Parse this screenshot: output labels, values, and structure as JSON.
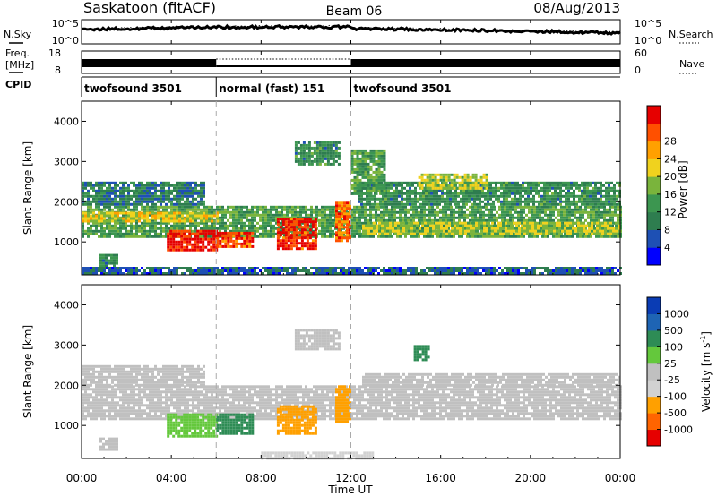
{
  "header": {
    "station": "Saskatoon (fitACF)",
    "beam": "Beam 06",
    "date": "08/Aug/2013"
  },
  "noise_panel": {
    "left_label": "N.Sky",
    "right_label": "N.Search",
    "left_ticks": [
      "10^5",
      "10^0"
    ],
    "right_ticks": [
      "10^5",
      "10^0"
    ]
  },
  "freq_panel": {
    "label_line1": "Freq.",
    "label_line2": "[MHz]",
    "left_ticks": [
      "18",
      "8"
    ],
    "right_ticks": [
      "60",
      "0"
    ],
    "right_label": "Nave"
  },
  "cpid_panel": {
    "label": "CPID",
    "segments": [
      {
        "name": "twofsound 3501",
        "start": 0,
        "end": 6
      },
      {
        "name": "normal (fast) 151",
        "start": 6,
        "end": 12
      },
      {
        "name": "twofsound 3501",
        "start": 12,
        "end": 24
      }
    ]
  },
  "axes": {
    "ylabel": "Slant Range [km]",
    "xlabel": "Time UT",
    "y_ticks": [
      "1000",
      "2000",
      "3000",
      "4000"
    ],
    "x_ticks": [
      "00:00",
      "04:00",
      "08:00",
      "12:00",
      "16:00",
      "20:00",
      "00:00"
    ]
  },
  "colors": {
    "power_scale": [
      "#0000ff",
      "#1e50b4",
      "#2e7d4f",
      "#3c9650",
      "#7ab43c",
      "#f0d21e",
      "#ffa000",
      "#ff5000",
      "#e60000"
    ],
    "velocity_scale": [
      "#0a3cb4",
      "#1e64b4",
      "#2e8c55",
      "#64c83c",
      "#c0c0c0",
      "#d2d2d2",
      "#ffa000",
      "#ff6400",
      "#e60000"
    ]
  },
  "chart_data": {
    "type": "heatmap",
    "x_range": [
      0,
      24
    ],
    "x_unit": "hours UT",
    "y_range": [
      180,
      4500
    ],
    "y_unit": "km",
    "mode_change_lines_hours": [
      6,
      12
    ],
    "panels": [
      {
        "name": "power",
        "colorbar_label": "Power [dB]",
        "colorbar_ticks": [
          "4",
          "8",
          "12",
          "16",
          "20",
          "24",
          "28"
        ],
        "colorbar_range": [
          0,
          30
        ],
        "regions": [
          {
            "t0": 0.0,
            "t1": 24.0,
            "r0": 1150,
            "r1": 1900,
            "value": 12
          },
          {
            "t0": 0.0,
            "t1": 6.0,
            "r0": 1500,
            "r1": 1750,
            "value": 18
          },
          {
            "t0": 0.0,
            "t1": 5.5,
            "r0": 1900,
            "r1": 2500,
            "value": 8
          },
          {
            "t0": 12.5,
            "t1": 24.0,
            "r0": 1200,
            "r1": 1500,
            "value": 16
          },
          {
            "t0": 12.3,
            "t1": 24.0,
            "r0": 1900,
            "r1": 2500,
            "value": 10
          },
          {
            "t0": 3.8,
            "t1": 6.0,
            "r0": 800,
            "r1": 1300,
            "value": 28
          },
          {
            "t0": 6.0,
            "t1": 7.6,
            "r0": 850,
            "r1": 1250,
            "value": 26
          },
          {
            "t0": 8.7,
            "t1": 10.4,
            "r0": 800,
            "r1": 1600,
            "value": 27
          },
          {
            "t0": 11.3,
            "t1": 12.0,
            "r0": 1000,
            "r1": 2000,
            "value": 24
          },
          {
            "t0": 12.0,
            "t1": 13.5,
            "r0": 2200,
            "r1": 3300,
            "value": 12
          },
          {
            "t0": 9.5,
            "t1": 11.5,
            "r0": 2900,
            "r1": 3500,
            "value": 10
          },
          {
            "t0": 0.8,
            "t1": 1.6,
            "r0": 400,
            "r1": 700,
            "value": 10
          },
          {
            "t0": 15.0,
            "t1": 18.0,
            "r0": 2300,
            "r1": 2700,
            "value": 16
          },
          {
            "t0": 0.0,
            "t1": 24.0,
            "r0": 200,
            "r1": 380,
            "value": 6
          }
        ]
      },
      {
        "name": "velocity",
        "colorbar_label": "Velocity [m s^-1]",
        "colorbar_ticks": [
          "1000",
          "500",
          "100",
          "25",
          "-25",
          "-100",
          "-500",
          "-1000"
        ],
        "regions": [
          {
            "t0": 0.0,
            "t1": 24.0,
            "r0": 1150,
            "r1": 2000,
            "value": 0
          },
          {
            "t0": 0.0,
            "t1": 5.5,
            "r0": 2000,
            "r1": 2500,
            "value": 0
          },
          {
            "t0": 12.5,
            "t1": 24.0,
            "r0": 2000,
            "r1": 2300,
            "value": 0
          },
          {
            "t0": 3.8,
            "t1": 6.0,
            "r0": 700,
            "r1": 1300,
            "value": 60
          },
          {
            "t0": 6.0,
            "t1": 7.6,
            "r0": 800,
            "r1": 1300,
            "value": 120
          },
          {
            "t0": 8.7,
            "t1": 10.4,
            "r0": 800,
            "r1": 1500,
            "value": -150
          },
          {
            "t0": 11.3,
            "t1": 12.0,
            "r0": 1100,
            "r1": 2000,
            "value": -200
          },
          {
            "t0": 9.5,
            "t1": 11.5,
            "r0": 2900,
            "r1": 3400,
            "value": 0
          },
          {
            "t0": 14.8,
            "t1": 15.4,
            "r0": 2600,
            "r1": 3000,
            "value": 150
          },
          {
            "t0": 0.8,
            "t1": 1.6,
            "r0": 400,
            "r1": 700,
            "value": 0
          },
          {
            "t0": 8.0,
            "t1": 13.0,
            "r0": 200,
            "r1": 350,
            "value": -60
          }
        ]
      }
    ]
  }
}
